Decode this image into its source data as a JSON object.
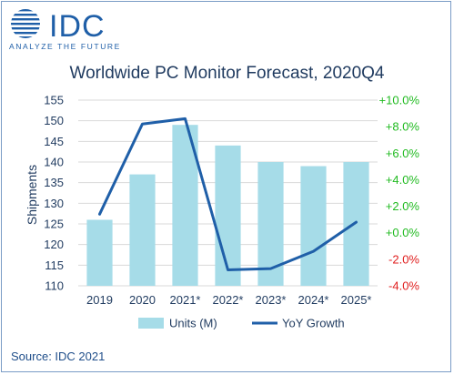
{
  "brand": {
    "name": "IDC",
    "tagline": "ANALYZE THE FUTURE",
    "color": "#1f5fa8"
  },
  "source": "Source: IDC 2021",
  "chart_data": {
    "type": "bar+line",
    "title": "Worldwide PC Monitor Forecast, 2020Q4",
    "ylabel": "Shipments",
    "categories": [
      "2019",
      "2020",
      "2021*",
      "2022*",
      "2023*",
      "2024*",
      "2025*"
    ],
    "left_axis": {
      "ylim": [
        110,
        155
      ],
      "ticks": [
        "110",
        "115",
        "120",
        "125",
        "130",
        "135",
        "140",
        "145",
        "150",
        "155"
      ]
    },
    "right_axis": {
      "ylim": [
        -4.0,
        10.0
      ],
      "ticks": [
        {
          "value": -4.0,
          "label": "-4.0%",
          "color": "#e02020"
        },
        {
          "value": -2.0,
          "label": "-2.0%",
          "color": "#e02020"
        },
        {
          "value": 0.0,
          "label": "+0.0%",
          "color": "#22bb22"
        },
        {
          "value": 2.0,
          "label": "+2.0%",
          "color": "#22bb22"
        },
        {
          "value": 4.0,
          "label": "+4.0%",
          "color": "#22bb22"
        },
        {
          "value": 6.0,
          "label": "+6.0%",
          "color": "#22bb22"
        },
        {
          "value": 8.0,
          "label": "+8.0%",
          "color": "#22bb22"
        },
        {
          "value": 10.0,
          "label": "+10.0%",
          "color": "#22bb22"
        }
      ]
    },
    "series": [
      {
        "name": "Units (M)",
        "kind": "bar",
        "axis": "left",
        "color": "#a6dce8",
        "values": [
          126,
          137,
          149,
          144,
          140,
          139,
          140
        ]
      },
      {
        "name": "YoY Growth",
        "kind": "line",
        "axis": "right",
        "color": "#1f5fa8",
        "values": [
          1.4,
          8.2,
          8.6,
          -2.8,
          -2.7,
          -1.4,
          0.8
        ]
      }
    ],
    "grid": true,
    "legend": "bottom"
  }
}
